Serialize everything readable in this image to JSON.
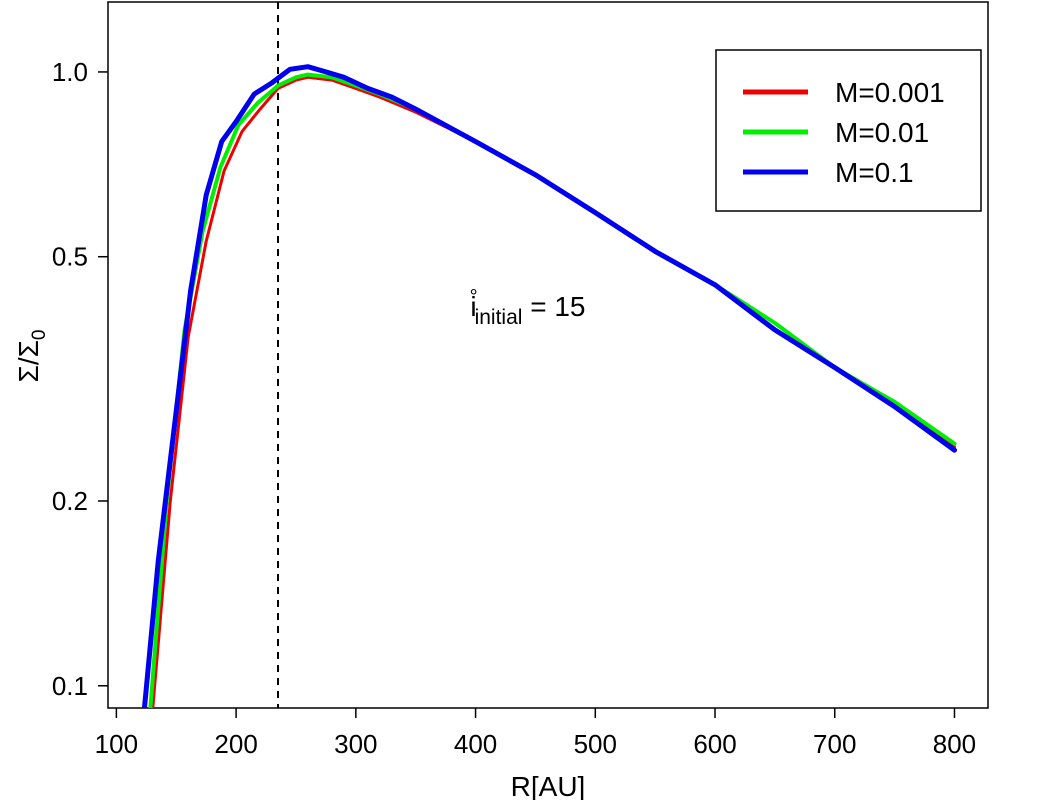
{
  "chart_data": {
    "type": "line",
    "title": "",
    "xlabel": "R[AU]",
    "ylabel": "Σ/Σ",
    "ylabel_sub": "0",
    "xlim": [
      93,
      828
    ],
    "ylim": [
      0.092,
      1.3
    ],
    "y_scale": "log",
    "x_ticks": [
      100,
      200,
      300,
      400,
      500,
      600,
      700,
      800
    ],
    "x_tick_labels": [
      "100",
      "200",
      "300",
      "400",
      "500",
      "600",
      "700",
      "800"
    ],
    "y_ticks": [
      0.1,
      0.2,
      0.5,
      1.0
    ],
    "y_tick_labels": [
      "0.1",
      "0.2",
      "0.5",
      "1.0"
    ],
    "vline_x": 235,
    "annotation": {
      "base": "i",
      "sup": "°",
      "sub": "initial",
      "rest": " = 15",
      "x": 395,
      "y": 0.4
    },
    "legend_position": "top-right",
    "series": [
      {
        "name": "M=0.001",
        "color": "#ee0000",
        "x": [
          130,
          145,
          160,
          175,
          190,
          205,
          220,
          235,
          250,
          260,
          280,
          300,
          320,
          350,
          400,
          450,
          500,
          550,
          600,
          650,
          700,
          750,
          800
        ],
        "y": [
          0.09,
          0.2,
          0.37,
          0.53,
          0.69,
          0.8,
          0.87,
          0.94,
          0.97,
          0.98,
          0.97,
          0.94,
          0.91,
          0.86,
          0.77,
          0.68,
          0.59,
          0.51,
          0.45,
          0.38,
          0.33,
          0.29,
          0.245
        ]
      },
      {
        "name": "M=0.01",
        "color": "#00ee00",
        "x": [
          128,
          142,
          157,
          172,
          187,
          202,
          218,
          235,
          250,
          260,
          280,
          300,
          320,
          350,
          400,
          450,
          500,
          550,
          600,
          650,
          700,
          750,
          800
        ],
        "y": [
          0.09,
          0.2,
          0.38,
          0.55,
          0.7,
          0.82,
          0.89,
          0.95,
          0.98,
          0.99,
          0.98,
          0.95,
          0.92,
          0.87,
          0.77,
          0.68,
          0.59,
          0.51,
          0.45,
          0.39,
          0.33,
          0.29,
          0.248
        ]
      },
      {
        "name": "M=0.1",
        "color": "#0000ee",
        "x": [
          123,
          135,
          150,
          162,
          175,
          188,
          200,
          215,
          230,
          245,
          260,
          275,
          290,
          310,
          330,
          350,
          400,
          450,
          500,
          550,
          600,
          650,
          700,
          750,
          800
        ],
        "y": [
          0.09,
          0.16,
          0.28,
          0.44,
          0.63,
          0.77,
          0.83,
          0.92,
          0.96,
          1.01,
          1.02,
          1.0,
          0.98,
          0.94,
          0.91,
          0.87,
          0.77,
          0.68,
          0.59,
          0.51,
          0.45,
          0.38,
          0.33,
          0.285,
          0.242
        ]
      }
    ]
  }
}
